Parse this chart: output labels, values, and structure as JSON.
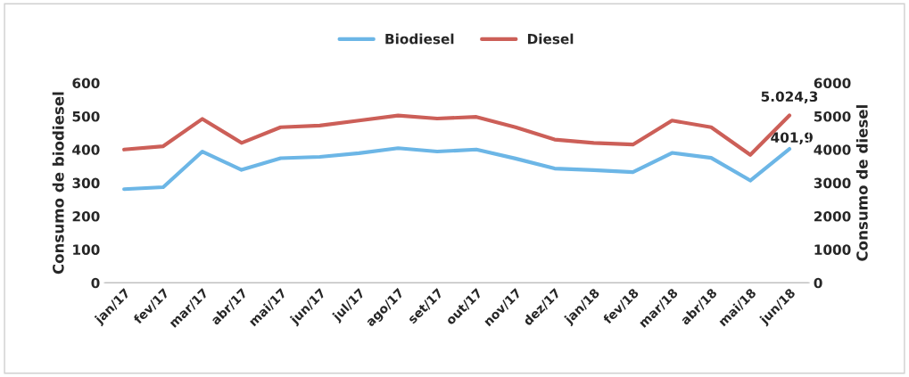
{
  "chart_data": {
    "type": "line",
    "ylabel": "Consumo de biodiesel",
    "y2label": "Consumo de diesel",
    "categories": [
      "jan/17",
      "fev/17",
      "mar/17",
      "abr/17",
      "mai/17",
      "jun/17",
      "jul/17",
      "ago/17",
      "set/17",
      "out/17",
      "nov/17",
      "dez/17",
      "jan/18",
      "fev/18",
      "mar/18",
      "abr/18",
      "mai/18",
      "jun/18"
    ],
    "series": [
      {
        "name": "Biodiesel",
        "color": "#6cb6e6",
        "values": [
          281,
          287,
          394,
          339,
          374,
          378,
          389,
          404,
          394,
          400,
          373,
          343,
          338,
          332,
          390,
          375,
          307,
          401.9
        ],
        "value_labels": [
          null,
          null,
          null,
          null,
          null,
          null,
          null,
          null,
          null,
          null,
          null,
          null,
          null,
          null,
          null,
          null,
          null,
          "401,9"
        ]
      },
      {
        "name": "Diesel",
        "color": "#cc5f58",
        "axis": "y2",
        "values": [
          4000,
          4100,
          4920,
          4200,
          4670,
          4720,
          4870,
          5020,
          4930,
          4980,
          4670,
          4300,
          4200,
          4150,
          4870,
          4670,
          3840,
          5024.3
        ],
        "value_labels": [
          null,
          null,
          null,
          null,
          null,
          null,
          null,
          null,
          null,
          null,
          null,
          null,
          null,
          null,
          null,
          null,
          null,
          "5.024,3"
        ]
      }
    ],
    "ylim": [
      0,
      600
    ],
    "yticks": [
      0,
      100,
      200,
      300,
      400,
      500,
      600
    ],
    "y2lim": [
      0,
      6000
    ],
    "y2ticks": [
      0,
      1000,
      2000,
      3000,
      4000,
      5000,
      6000
    ],
    "legend": "top",
    "grid": false,
    "marker": "none",
    "line_style": "solid"
  }
}
